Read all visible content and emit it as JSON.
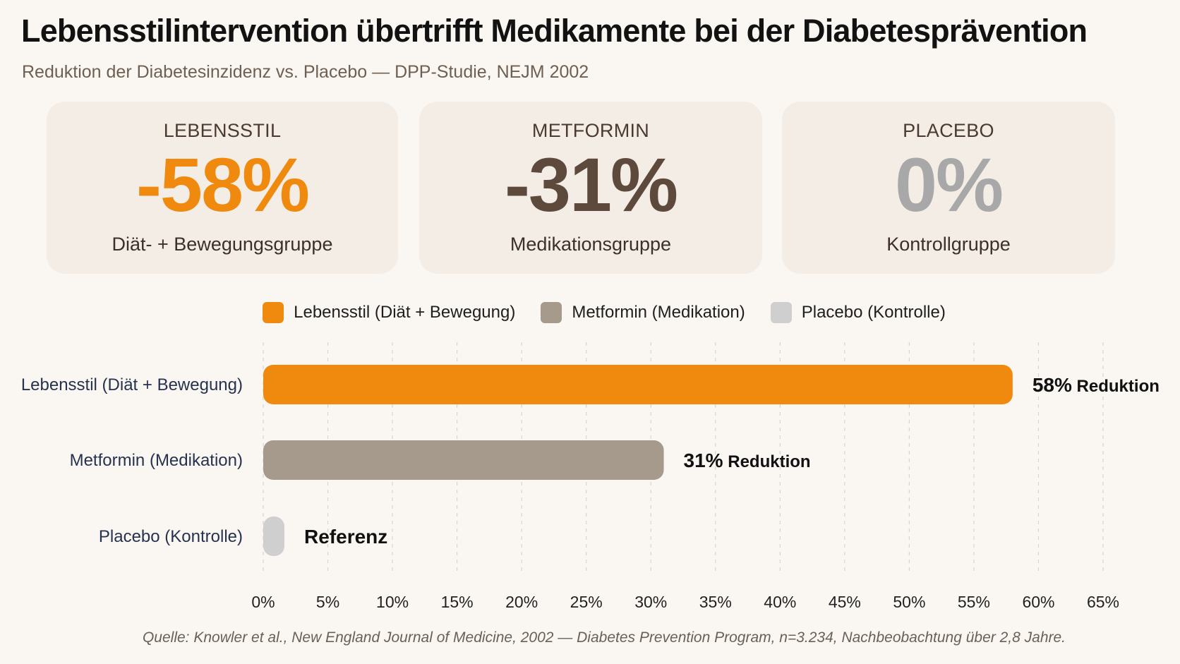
{
  "title": "Lebensstilintervention übertrifft Medikamente bei der Diabetesprävention",
  "subtitle": "Reduktion der Diabetesinzidenz vs. Placebo — DPP-Studie, NEJM 2002",
  "cards": [
    {
      "label": "LEBENSSTIL",
      "value": "-58%",
      "desc": "Diät- + Bewegungsgruppe",
      "color": "#f08a0f"
    },
    {
      "label": "METFORMIN",
      "value": "-31%",
      "desc": "Medikationsgruppe",
      "color": "#5e4a3c"
    },
    {
      "label": "PLACEBO",
      "value": "0%",
      "desc": "Kontrollgruppe",
      "color": "#a8a8a8"
    }
  ],
  "legend": [
    {
      "label": "Lebensstil (Diät + Bewegung)",
      "color": "#f08a0f"
    },
    {
      "label": "Metformin (Medikation)",
      "color": "#a59a8b"
    },
    {
      "label": "Placebo (Kontrolle)",
      "color": "#cfcfcf"
    }
  ],
  "chart_data": {
    "type": "bar",
    "orientation": "horizontal",
    "categories": [
      "Lebensstil (Diät + Bewegung)",
      "Metformin (Medikation)",
      "Placebo (Kontrolle)"
    ],
    "values": [
      58,
      31,
      0
    ],
    "colors": [
      "#f08a0f",
      "#a59a8b",
      "#cfcfcf"
    ],
    "value_labels": [
      {
        "strong": "58%",
        "rest": "Reduktion"
      },
      {
        "strong": "31%",
        "rest": "Reduktion"
      },
      {
        "strong": "Referenz",
        "rest": ""
      }
    ],
    "xlim": [
      0,
      65
    ],
    "xticks": [
      "0%",
      "5%",
      "10%",
      "15%",
      "20%",
      "25%",
      "30%",
      "35%",
      "40%",
      "45%",
      "50%",
      "55%",
      "60%",
      "65%"
    ],
    "grid": true
  },
  "source": "Quelle: Knowler et al., New England Journal of Medicine, 2002 — Diabetes Prevention Program, n=3.234, Nachbeobachtung über 2,8 Jahre."
}
